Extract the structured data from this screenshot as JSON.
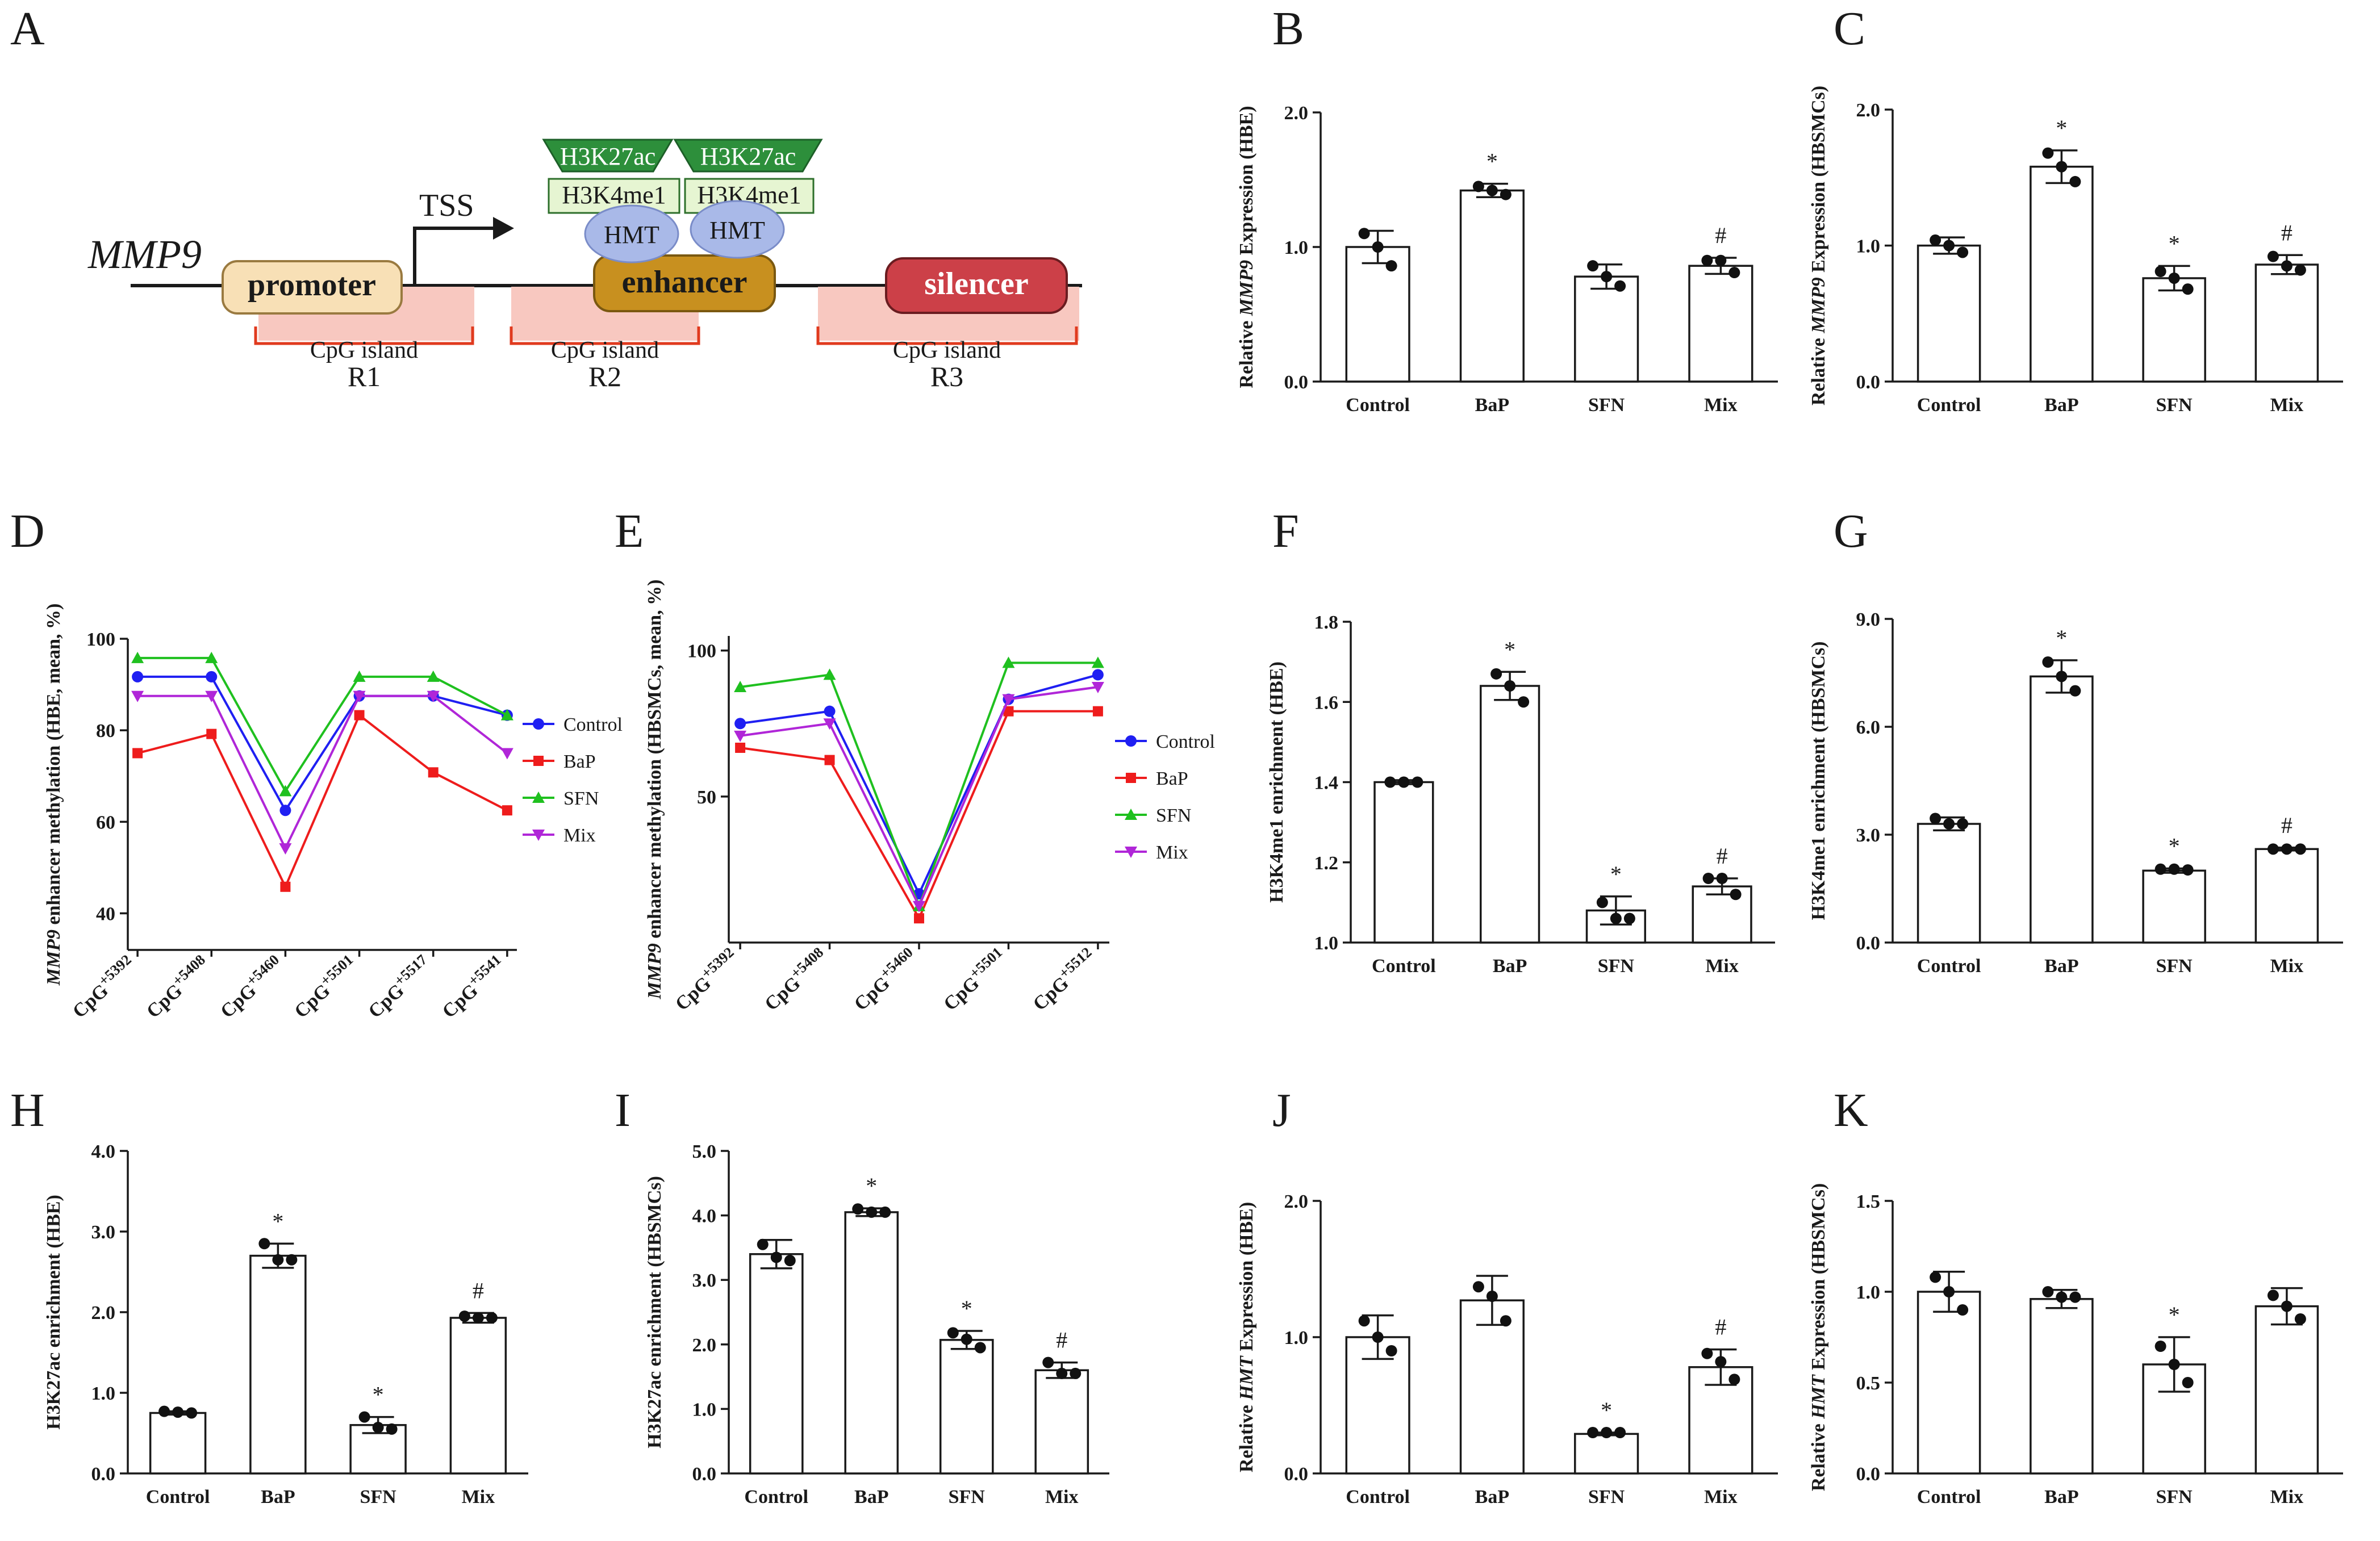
{
  "figure": {
    "panel_a": {
      "label": "A",
      "gene": "MMP9",
      "tss": "TSS",
      "promoter": "promoter",
      "enhancer": "enhancer",
      "silencer": "silencer",
      "h3k27ac": "H3K27ac",
      "h3k4me1": "H3K4me1",
      "hmt": "HMT",
      "cpg_label": "CpG island",
      "regions": [
        "R1",
        "R2",
        "R3"
      ]
    }
  },
  "chart_data": [
    {
      "id": "B",
      "label": "B",
      "type": "bar",
      "ylabel_pre": "Relative ",
      "ylabel_it": "MMP9",
      "ylabel_post": " Expression (HBE)",
      "categories": [
        "Control",
        "BaP",
        "SFN",
        "Mix"
      ],
      "values": [
        1.0,
        1.42,
        0.78,
        0.86
      ],
      "errors": [
        0.12,
        0.05,
        0.09,
        0.06
      ],
      "points": [
        [
          1.1,
          1.0,
          0.86
        ],
        [
          1.45,
          1.42,
          1.39
        ],
        [
          0.86,
          0.78,
          0.71
        ],
        [
          0.9,
          0.9,
          0.81
        ]
      ],
      "sig": [
        "",
        "*",
        "",
        "#"
      ],
      "ylim": [
        0,
        2
      ],
      "yticks": [
        "0.0",
        "1.0",
        "2.0"
      ]
    },
    {
      "id": "C",
      "label": "C",
      "type": "bar",
      "ylabel_pre": "Relative ",
      "ylabel_it": "MMP9",
      "ylabel_post": " Expression (HBSMCs)",
      "categories": [
        "Control",
        "BaP",
        "SFN",
        "Mix"
      ],
      "values": [
        1.0,
        1.58,
        0.76,
        0.86
      ],
      "errors": [
        0.06,
        0.12,
        0.09,
        0.07
      ],
      "points": [
        [
          1.04,
          1.0,
          0.95
        ],
        [
          1.68,
          1.58,
          1.47
        ],
        [
          0.81,
          0.76,
          0.68
        ],
        [
          0.92,
          0.85,
          0.82
        ]
      ],
      "sig": [
        "",
        "*",
        "*",
        "#"
      ],
      "ylim": [
        0,
        2
      ],
      "yticks": [
        "0.0",
        "1.0",
        "2.0"
      ]
    },
    {
      "id": "D",
      "label": "D",
      "type": "line",
      "ylabel_it": "MMP9",
      "ylabel_post": " enhancer methylation (HBE, mean, %)",
      "categories": [
        "CpG+5392",
        "CpG+5408",
        "CpG+5460",
        "CpG+5501",
        "CpG+5517",
        "CpG+5541"
      ],
      "cpg_base": "CpG",
      "cpg_sup": [
        "+5392",
        "+5408",
        "+5460",
        "+5501",
        "+5517",
        "+5541"
      ],
      "series": [
        {
          "name": "Control",
          "color": "#1f1ff2",
          "marker": "circle",
          "values": [
            91.7,
            91.7,
            62.5,
            87.5,
            87.5,
            83.3
          ]
        },
        {
          "name": "BaP",
          "color": "#ee1c1c",
          "marker": "square",
          "values": [
            75.0,
            79.2,
            45.8,
            83.3,
            70.8,
            62.5
          ]
        },
        {
          "name": "SFN",
          "color": "#1fc01f",
          "marker": "triangle",
          "values": [
            95.8,
            95.8,
            66.7,
            91.7,
            91.7,
            83.3
          ]
        },
        {
          "name": "Mix",
          "color": "#b026d8",
          "marker": "tridown",
          "values": [
            87.5,
            87.5,
            54.2,
            87.5,
            87.5,
            75.0
          ]
        }
      ],
      "ylim": [
        32,
        100
      ],
      "yticks": [
        40,
        60,
        80,
        100
      ]
    },
    {
      "id": "E",
      "label": "E",
      "type": "line",
      "ylabel_it": "MMP9",
      "ylabel_post": " enhancer methylation (HBSMCs, mean, %)",
      "categories": [
        "CpG+5392",
        "CpG+5408",
        "CpG+5460",
        "CpG+5501",
        "CpG+5512"
      ],
      "cpg_base": "CpG",
      "cpg_sup": [
        "+5392",
        "+5408",
        "+5460",
        "+5501",
        "+5512"
      ],
      "series": [
        {
          "name": "Control",
          "color": "#1f1ff2",
          "marker": "circle",
          "values": [
            75.0,
            79.2,
            16.7,
            83.3,
            91.7
          ]
        },
        {
          "name": "BaP",
          "color": "#ee1c1c",
          "marker": "square",
          "values": [
            66.7,
            62.5,
            8.3,
            79.2,
            79.2
          ]
        },
        {
          "name": "SFN",
          "color": "#1fc01f",
          "marker": "triangle",
          "values": [
            87.5,
            91.7,
            12.5,
            95.8,
            95.8
          ]
        },
        {
          "name": "Mix",
          "color": "#b026d8",
          "marker": "tridown",
          "values": [
            70.8,
            75.0,
            12.5,
            83.3,
            87.5
          ]
        }
      ],
      "ylim": [
        0,
        105
      ],
      "yticks": [
        50,
        100
      ]
    },
    {
      "id": "F",
      "label": "F",
      "type": "bar",
      "ylabel_pre": "",
      "ylabel_it": "",
      "ylabel_post": "H3K4me1 enrichment (HBE)",
      "categories": [
        "Control",
        "BaP",
        "SFN",
        "Mix"
      ],
      "values": [
        1.4,
        1.64,
        1.08,
        1.14
      ],
      "errors": [
        0.005,
        0.035,
        0.035,
        0.02
      ],
      "points": [
        [
          1.4,
          1.4,
          1.4
        ],
        [
          1.67,
          1.64,
          1.6
        ],
        [
          1.1,
          1.06,
          1.06
        ],
        [
          1.16,
          1.16,
          1.12
        ]
      ],
      "sig": [
        "",
        "*",
        "*",
        "#"
      ],
      "ylim": [
        1,
        1.8
      ],
      "yticks": [
        "1.0",
        "1.2",
        "1.4",
        "1.6",
        "1.8"
      ]
    },
    {
      "id": "G",
      "label": "G",
      "type": "bar",
      "ylabel_pre": "",
      "ylabel_it": "",
      "ylabel_post": "H3K4me1 enrichment (HBSMCs)",
      "categories": [
        "Control",
        "BaP",
        "SFN",
        "Mix"
      ],
      "values": [
        3.3,
        7.4,
        2.0,
        2.6
      ],
      "errors": [
        0.18,
        0.45,
        0.06,
        0.04
      ],
      "points": [
        [
          3.45,
          3.3,
          3.3
        ],
        [
          7.8,
          7.4,
          7.0
        ],
        [
          2.04,
          2.04,
          2.02
        ],
        [
          2.6,
          2.6,
          2.6
        ]
      ],
      "sig": [
        "",
        "*",
        "*",
        "#"
      ],
      "ylim": [
        0,
        9
      ],
      "yticks": [
        "0.0",
        "3.0",
        "6.0",
        "9.0"
      ]
    },
    {
      "id": "H",
      "label": "H",
      "type": "bar",
      "ylabel_pre": "",
      "ylabel_it": "",
      "ylabel_post": "H3K27ac enrichment (HBE)",
      "categories": [
        "Control",
        "BaP",
        "SFN",
        "Mix"
      ],
      "values": [
        0.75,
        2.7,
        0.6,
        1.93
      ],
      "errors": [
        0.02,
        0.15,
        0.1,
        0.06
      ],
      "points": [
        [
          0.77,
          0.76,
          0.75
        ],
        [
          2.85,
          2.65,
          2.65
        ],
        [
          0.7,
          0.57,
          0.55
        ],
        [
          1.95,
          1.93,
          1.93
        ]
      ],
      "sig": [
        "",
        "*",
        "*",
        "#"
      ],
      "ylim": [
        0,
        4
      ],
      "yticks": [
        "0.0",
        "1.0",
        "2.0",
        "3.0",
        "4.0"
      ]
    },
    {
      "id": "I",
      "label": "I",
      "type": "bar",
      "ylabel_pre": "",
      "ylabel_it": "",
      "ylabel_post": "H3K27ac enrichment (HBSMCs)",
      "categories": [
        "Control",
        "BaP",
        "SFN",
        "Mix"
      ],
      "values": [
        3.4,
        4.05,
        2.07,
        1.6
      ],
      "errors": [
        0.22,
        0.06,
        0.14,
        0.12
      ],
      "points": [
        [
          3.55,
          3.35,
          3.3
        ],
        [
          4.1,
          4.05,
          4.05
        ],
        [
          2.18,
          2.08,
          1.95
        ],
        [
          1.72,
          1.55,
          1.55
        ]
      ],
      "sig": [
        "",
        "*",
        "*",
        "#"
      ],
      "ylim": [
        0,
        5
      ],
      "yticks": [
        "0.0",
        "1.0",
        "2.0",
        "3.0",
        "4.0",
        "5.0"
      ]
    },
    {
      "id": "J",
      "label": "J",
      "type": "bar",
      "ylabel_pre": "Relative ",
      "ylabel_it": "HMT",
      "ylabel_post": " Expression (HBE)",
      "categories": [
        "Control",
        "BaP",
        "SFN",
        "Mix"
      ],
      "values": [
        1.0,
        1.27,
        0.29,
        0.78
      ],
      "errors": [
        0.16,
        0.18,
        0.01,
        0.13
      ],
      "points": [
        [
          1.12,
          1.0,
          0.9
        ],
        [
          1.37,
          1.3,
          1.12
        ],
        [
          0.3,
          0.3,
          0.3
        ],
        [
          0.88,
          0.82,
          0.69
        ]
      ],
      "sig": [
        "",
        "",
        "*",
        "#"
      ],
      "ylim": [
        0,
        2
      ],
      "yticks": [
        "0.0",
        "1.0",
        "2.0"
      ]
    },
    {
      "id": "K",
      "label": "K",
      "type": "bar",
      "ylabel_pre": "Relative ",
      "ylabel_it": "HMT",
      "ylabel_post": " Expression (HBSMCs)",
      "categories": [
        "Control",
        "BaP",
        "SFN",
        "Mix"
      ],
      "values": [
        1.0,
        0.96,
        0.6,
        0.92
      ],
      "errors": [
        0.11,
        0.05,
        0.15,
        0.1
      ],
      "points": [
        [
          1.08,
          1.0,
          0.9
        ],
        [
          1.0,
          0.97,
          0.97
        ],
        [
          0.7,
          0.6,
          0.5
        ],
        [
          0.98,
          0.92,
          0.85
        ]
      ],
      "sig": [
        "",
        "",
        "*",
        ""
      ],
      "ylim": [
        0,
        1.5
      ],
      "yticks": [
        "0.0",
        "0.5",
        "1.0",
        "1.5"
      ]
    }
  ]
}
